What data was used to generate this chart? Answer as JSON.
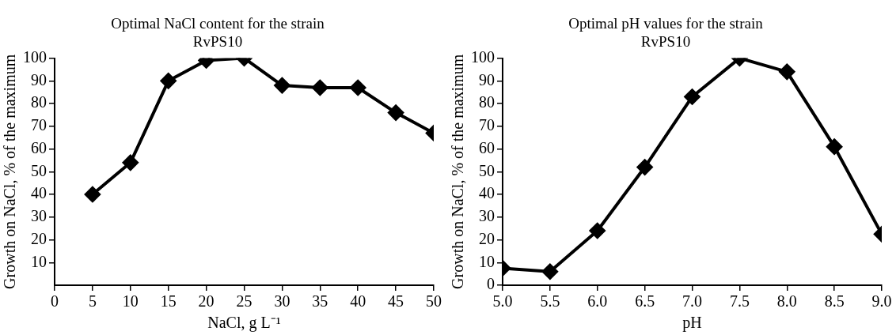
{
  "chart_data": [
    {
      "type": "line",
      "title": "Optimal NaCl content for the strain RvPS10",
      "xlabel": "NaCl, g L⁻¹",
      "ylabel": "Growth on NaCl, % of the maximum",
      "x": [
        5,
        10,
        15,
        20,
        25,
        30,
        35,
        40,
        45,
        50
      ],
      "series": [
        {
          "color": "#000000",
          "values": [
            40,
            54,
            90,
            99,
            100,
            88,
            87,
            87,
            76,
            67
          ]
        }
      ],
      "xlim": [
        0,
        50
      ],
      "xticks": [
        0,
        5,
        10,
        15,
        20,
        25,
        30,
        35,
        40,
        45,
        50
      ],
      "ylim": [
        0,
        100
      ],
      "yticks": [
        10,
        20,
        30,
        40,
        50,
        60,
        70,
        80,
        90,
        100
      ],
      "grid": false,
      "legend": false,
      "marker": "diamond",
      "line_style": "solid"
    },
    {
      "type": "line",
      "title": "Optimal pH values for the strain RvPS10",
      "xlabel": "pH",
      "ylabel": "Growth on NaCl, % of the maximum",
      "x": [
        5.0,
        5.5,
        6.0,
        6.5,
        7.0,
        7.5,
        8.0,
        8.5,
        9.0
      ],
      "series": [
        {
          "color": "#000000",
          "values": [
            7.5,
            6,
            24,
            52,
            83,
            100,
            94,
            61,
            22.5
          ]
        }
      ],
      "xlim": [
        5.0,
        9.0
      ],
      "xticks": [
        {
          "value": 5.0,
          "label": "5.0"
        },
        {
          "value": 5.5,
          "label": "5.5"
        },
        {
          "value": 6.0,
          "label": "6.0"
        },
        {
          "value": 6.5,
          "label": "6.5"
        },
        {
          "value": 7.0,
          "label": "7.0"
        },
        {
          "value": 7.5,
          "label": "7.5"
        },
        {
          "value": 8.0,
          "label": "8.0"
        },
        {
          "value": 8.5,
          "label": "8.5"
        },
        {
          "value": 9.0,
          "label": "9.0"
        }
      ],
      "ylim": [
        0,
        100
      ],
      "yticks": [
        0,
        10,
        20,
        30,
        40,
        50,
        60,
        70,
        80,
        90,
        100
      ],
      "grid": false,
      "legend": false,
      "marker": "diamond",
      "line_style": "solid"
    }
  ]
}
